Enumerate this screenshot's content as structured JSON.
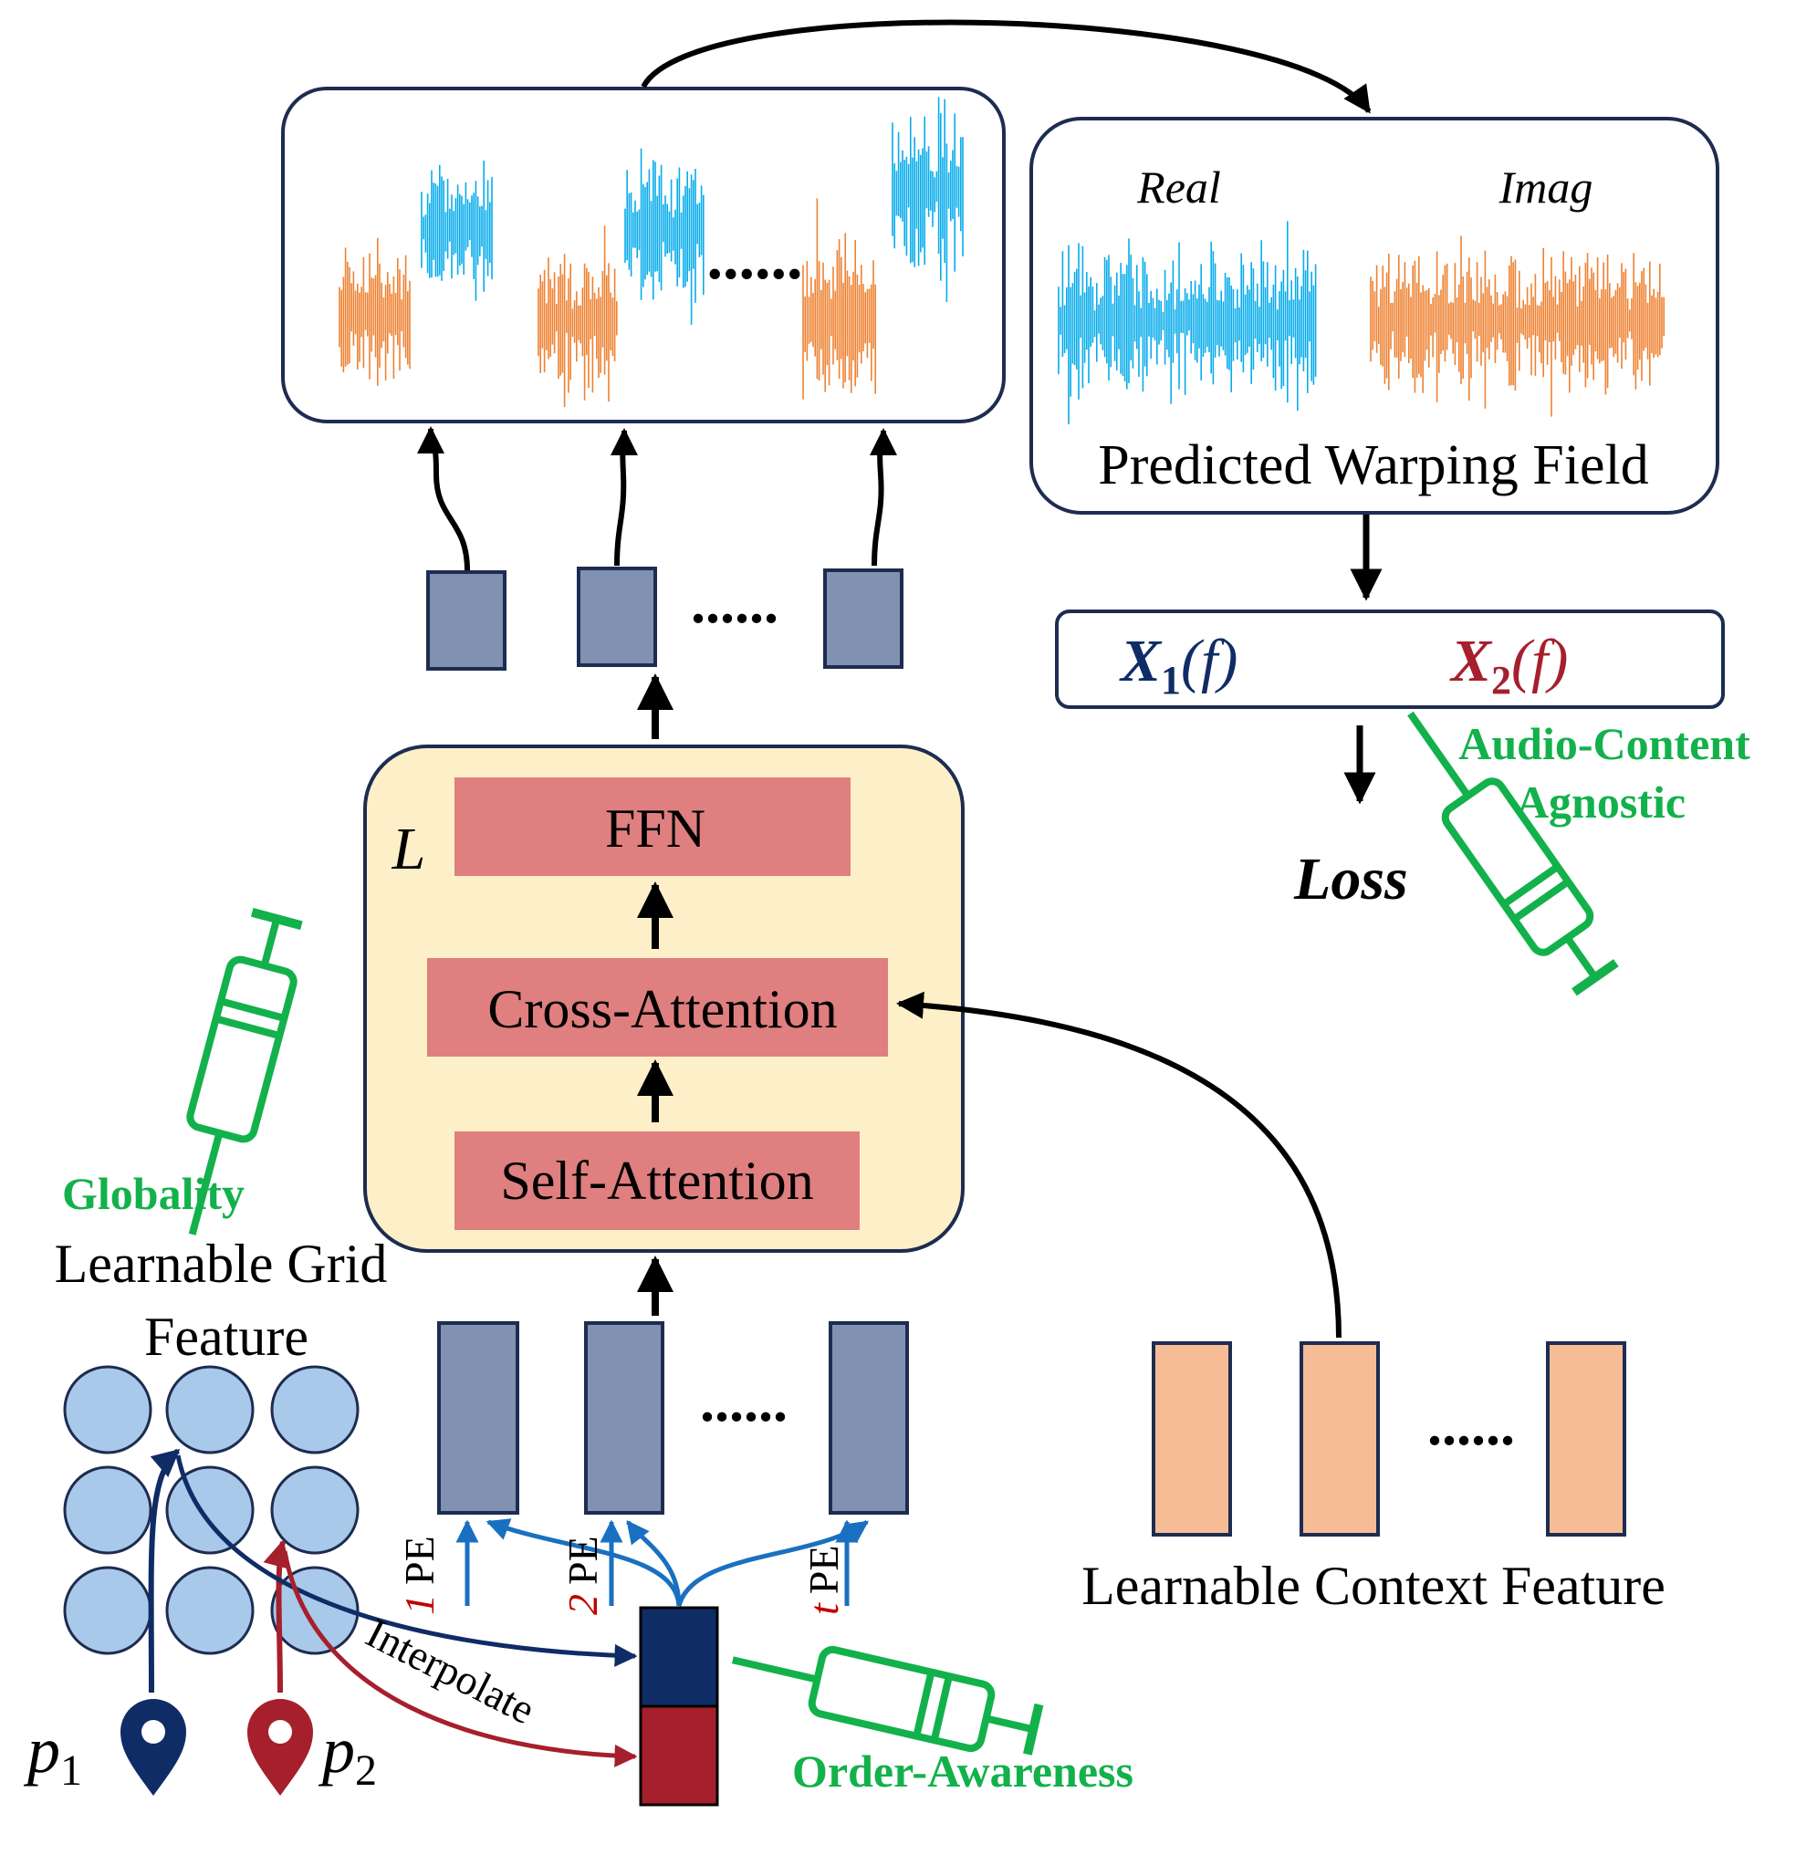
{
  "warping_panel": {
    "real_label": "Real",
    "imag_label": "Imag",
    "caption": "Predicted Warping Field"
  },
  "formula": {
    "x1_base": "X",
    "x1_sub": "1",
    "x1_arg": "(f)",
    "x2_base": "X",
    "x2_sub": "2",
    "x2_arg": "(f)",
    "loss": "Loss"
  },
  "decoder": {
    "layers_label": "L",
    "ffn": "FFN",
    "cross_attention": "Cross-Attention",
    "self_attention": "Self-Attention"
  },
  "labels": {
    "audio_content_line1": "Audio-Content",
    "audio_content_line2": "Agnostic",
    "globality": "Globality",
    "grid_feature_line1": "Learnable Grid",
    "grid_feature_line2": "Feature",
    "context_feature": "Learnable Context Feature",
    "interpolate": "Interpolate",
    "order_awareness": "Order-Awareness",
    "p1_base": "p",
    "p1_sub": "1",
    "p2_base": "p",
    "p2_sub": "2"
  },
  "pe": [
    {
      "index": "1",
      "label": "PE"
    },
    {
      "index": "2",
      "label": "PE"
    },
    {
      "index": "t",
      "label": "PE"
    }
  ],
  "ellipsis": "......",
  "colors": {
    "orange": "#ee8232",
    "blue": "#08aceb",
    "token": "#8191b1",
    "token_border": "#1d2c50",
    "context": "#f5bc96",
    "block": "#df7f7f",
    "decoder_bg": "#fdf0c9",
    "green": "#13b14b",
    "navy": "#0f2c66",
    "crimson": "#a61f2c",
    "arrow_blue": "#1a70c0",
    "grid_circle": "#a9c9ea"
  },
  "icons": [
    "syringe-icon",
    "map-pin-icon",
    "arrow-icon"
  ]
}
